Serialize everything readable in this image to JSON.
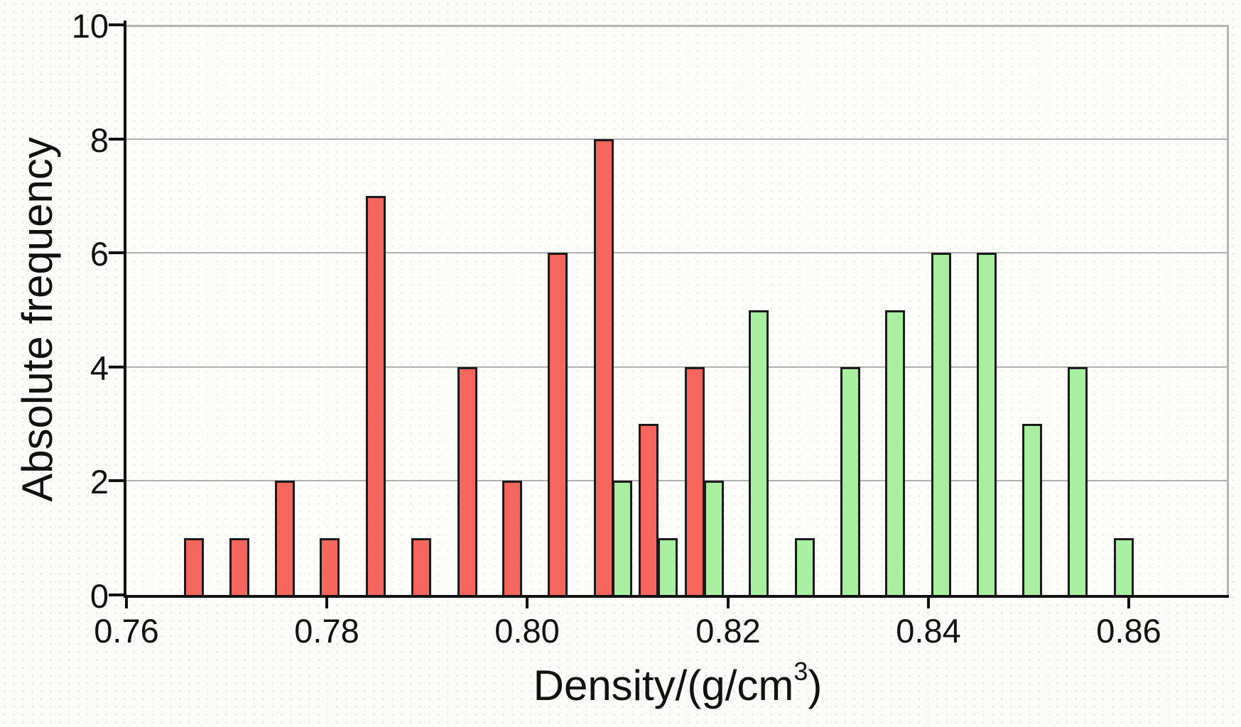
{
  "chart_data": {
    "type": "bar",
    "title": "",
    "xlabel_main": "Density/(g/cm",
    "xlabel_sup": "3",
    "xlabel_close": ")",
    "ylabel": "Absolute frequency",
    "xlim": [
      0.76,
      0.87
    ],
    "ylim": [
      0,
      10
    ],
    "grid": "horizontal",
    "legend": "none",
    "gridlines_y": [
      2,
      4,
      6,
      8
    ],
    "x_ticks": [
      {
        "v": 0.76,
        "label": "0.76"
      },
      {
        "v": 0.78,
        "label": "0.78"
      },
      {
        "v": 0.8,
        "label": "0.80"
      },
      {
        "v": 0.82,
        "label": "0.82"
      },
      {
        "v": 0.84,
        "label": "0.84"
      },
      {
        "v": 0.86,
        "label": "0.86"
      }
    ],
    "y_ticks": [
      {
        "v": 0,
        "label": "0"
      },
      {
        "v": 2,
        "label": "2"
      },
      {
        "v": 4,
        "label": "4"
      },
      {
        "v": 6,
        "label": "6"
      },
      {
        "v": 8,
        "label": "8"
      },
      {
        "v": 10,
        "label": "10"
      }
    ],
    "bar_width": 0.0018,
    "series": [
      {
        "name": "red-histogram",
        "color": "#f5665f",
        "edge_color": "#1b1b1b",
        "x": [
          0.7667,
          0.7713,
          0.7758,
          0.7803,
          0.7849,
          0.7894,
          0.794,
          0.7985,
          0.803,
          0.8076,
          0.8121,
          0.8167
        ],
        "values": [
          1,
          1,
          2,
          1,
          7,
          1,
          4,
          2,
          6,
          8,
          3,
          4
        ]
      },
      {
        "name": "green-histogram",
        "color": "#a8efa2",
        "edge_color": "#1b1b1b",
        "x": [
          0.8095,
          0.814,
          0.8186,
          0.8231,
          0.8277,
          0.8322,
          0.8367,
          0.8413,
          0.8458,
          0.8504,
          0.8549,
          0.8595
        ],
        "values": [
          2,
          1,
          2,
          5,
          1,
          4,
          5,
          6,
          6,
          3,
          4,
          1
        ]
      }
    ]
  }
}
